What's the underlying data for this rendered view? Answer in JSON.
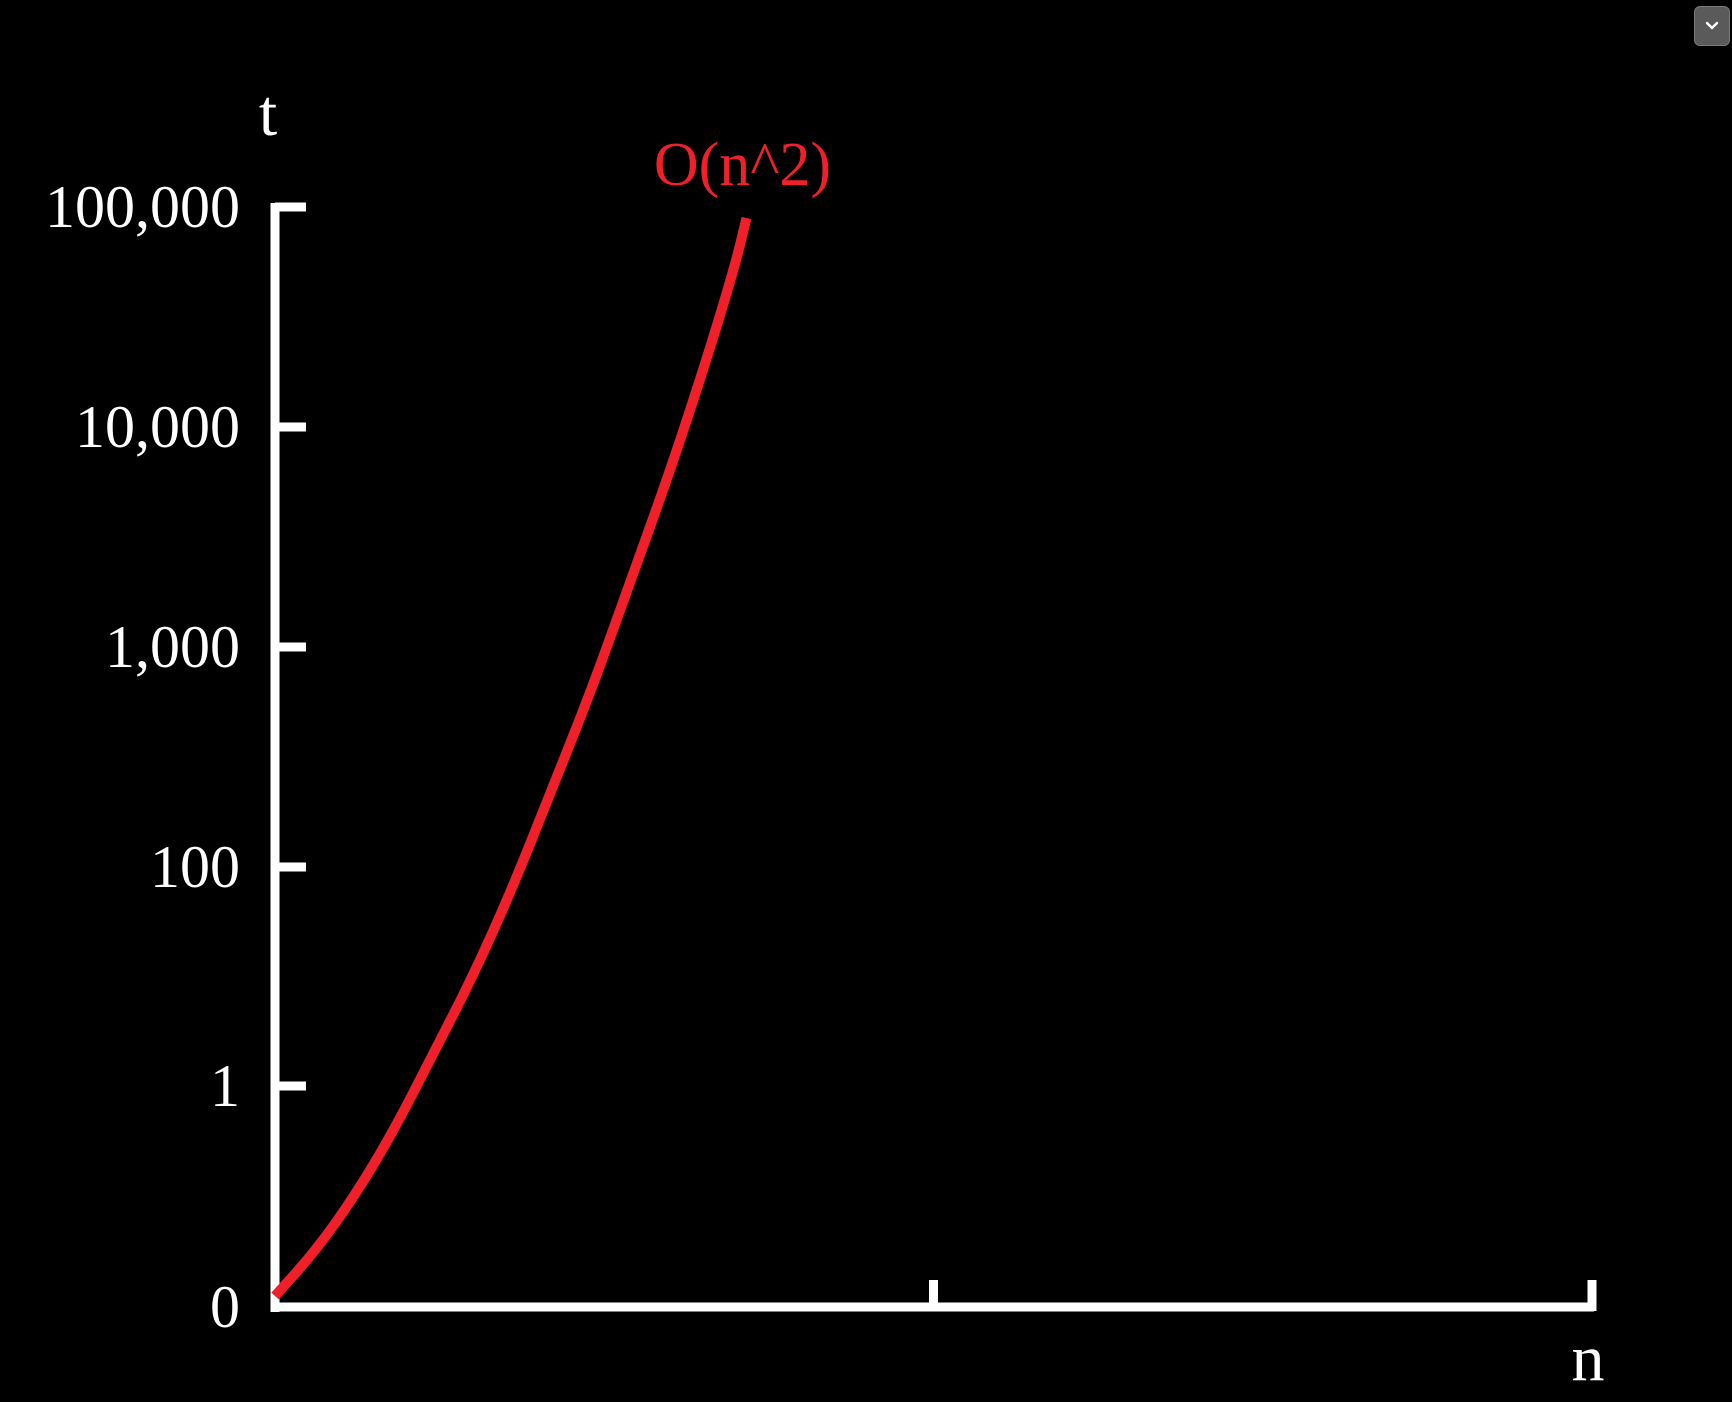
{
  "chart_data": {
    "type": "line",
    "xlabel": "n",
    "ylabel": "t",
    "y_scale": "log",
    "y_ticks": [
      {
        "label": "100,000",
        "value": 100000
      },
      {
        "label": "10,000",
        "value": 10000
      },
      {
        "label": "1,000",
        "value": 1000
      },
      {
        "label": "100",
        "value": 100
      },
      {
        "label": "1",
        "value": 1
      },
      {
        "label": "0",
        "value": 0
      }
    ],
    "x_ticks": [
      0,
      0.5,
      1
    ],
    "xlim": [
      0,
      1
    ],
    "grid": false,
    "background": "#000000",
    "axis_color": "#ffffff",
    "series": [
      {
        "name": "O(n^2)",
        "color": "#f0202a",
        "x": [
          0,
          0.03,
          0.06,
          0.09,
          0.12,
          0.15,
          0.18,
          0.21,
          0.24,
          0.27,
          0.3,
          0.33,
          0.35,
          0.358
        ],
        "y_level": [
          0.01,
          0.05,
          0.1,
          0.16,
          0.23,
          0.3,
          0.38,
          0.47,
          0.56,
          0.66,
          0.76,
          0.87,
          0.95,
          0.99
        ]
      }
    ]
  },
  "ui": {
    "menu_icon": "chevron-down-icon"
  }
}
